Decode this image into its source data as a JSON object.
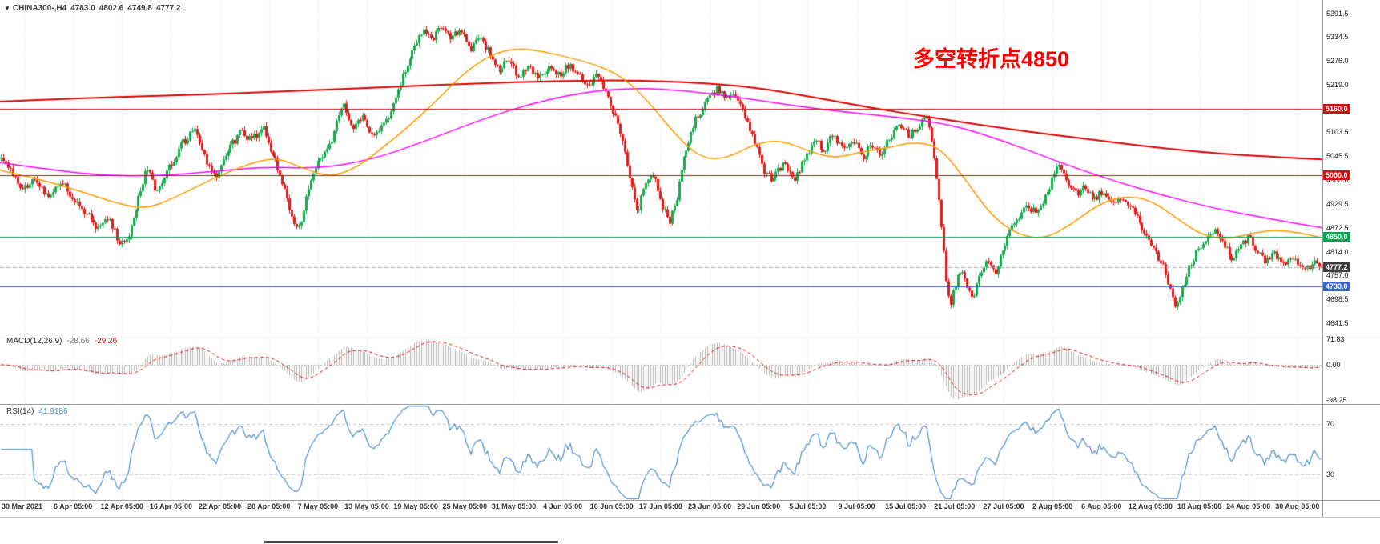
{
  "symbol_info": {
    "icon": "▼",
    "symbol": "CHINA300-,H4",
    "open": "4783.0",
    "high": "4802.6",
    "low": "4749.8",
    "close": "4777.2"
  },
  "annotation": {
    "text": "多空转折点4850",
    "color": "#ff0000"
  },
  "chart_data": {
    "type": "candlestick",
    "symbol": "CHINA300-",
    "timeframe": "H4",
    "last_ohlc": {
      "open": 4783.0,
      "high": 4802.6,
      "low": 4749.8,
      "close": 4777.2
    },
    "price_range": [
      4616,
      5424
    ],
    "bar_count": 560,
    "seed": 20210830,
    "noise_amplitude": 9,
    "bull_color": "#16a94e",
    "bear_color": "#e81717",
    "grid_color": "#e9e9e9",
    "y_ticks": [
      "5391.5",
      "5334.5",
      "5276.0",
      "5219.0",
      "5103.5",
      "5045.5",
      "4988.0",
      "4929.5",
      "4872.5",
      "4814.0",
      "4757.0",
      "4698.5",
      "4641.5"
    ],
    "levels": [
      {
        "value": 5160.0,
        "label": "5160.0",
        "color": "#cc1111"
      },
      {
        "value": 5000.0,
        "label": "5000.0",
        "color": "#cc1111"
      },
      {
        "value": 4850.0,
        "label": "4850.0",
        "color": "#00a651"
      },
      {
        "value": 4730.0,
        "label": "4730.0",
        "color": "#3a62c8"
      }
    ],
    "current_price_line": {
      "value": 4777.2,
      "label": "4777.2",
      "badge_color": "#3d3d3d",
      "line_color": "#b0b0b0"
    },
    "moving_averages": [
      {
        "name": "ma-slow-red",
        "color": "#dd0000",
        "width": 2,
        "anchors": [
          [
            0,
            5178
          ],
          [
            0.06,
            5186
          ],
          [
            0.12,
            5192
          ],
          [
            0.18,
            5198
          ],
          [
            0.24,
            5206
          ],
          [
            0.3,
            5214
          ],
          [
            0.36,
            5222
          ],
          [
            0.42,
            5228
          ],
          [
            0.48,
            5230
          ],
          [
            0.54,
            5222
          ],
          [
            0.58,
            5208
          ],
          [
            0.62,
            5186
          ],
          [
            0.66,
            5162
          ],
          [
            0.7,
            5142
          ],
          [
            0.74,
            5122
          ],
          [
            0.78,
            5104
          ],
          [
            0.82,
            5088
          ],
          [
            0.86,
            5072
          ],
          [
            0.9,
            5058
          ],
          [
            0.94,
            5048
          ],
          [
            1,
            5038
          ]
        ]
      },
      {
        "name": "ma-mid-magenta",
        "color": "#ff00ff",
        "width": 1.5,
        "anchors": [
          [
            0,
            5030
          ],
          [
            0.04,
            5012
          ],
          [
            0.08,
            4998
          ],
          [
            0.12,
            4998
          ],
          [
            0.16,
            5008
          ],
          [
            0.2,
            5020
          ],
          [
            0.24,
            5016
          ],
          [
            0.28,
            5036
          ],
          [
            0.32,
            5080
          ],
          [
            0.36,
            5130
          ],
          [
            0.4,
            5172
          ],
          [
            0.44,
            5200
          ],
          [
            0.48,
            5212
          ],
          [
            0.52,
            5204
          ],
          [
            0.56,
            5188
          ],
          [
            0.6,
            5168
          ],
          [
            0.64,
            5152
          ],
          [
            0.68,
            5140
          ],
          [
            0.72,
            5122
          ],
          [
            0.76,
            5082
          ],
          [
            0.8,
            5032
          ],
          [
            0.84,
            4988
          ],
          [
            0.88,
            4950
          ],
          [
            0.92,
            4918
          ],
          [
            0.96,
            4894
          ],
          [
            1,
            4872
          ]
        ]
      },
      {
        "name": "ma-fast-orange",
        "color": "#ff9900",
        "width": 1.5,
        "anchors": [
          [
            0,
            5012
          ],
          [
            0.03,
            4990
          ],
          [
            0.06,
            4962
          ],
          [
            0.09,
            4930
          ],
          [
            0.11,
            4918
          ],
          [
            0.13,
            4942
          ],
          [
            0.16,
            4990
          ],
          [
            0.19,
            5030
          ],
          [
            0.21,
            5042
          ],
          [
            0.23,
            5015
          ],
          [
            0.25,
            4995
          ],
          [
            0.27,
            5018
          ],
          [
            0.29,
            5068
          ],
          [
            0.31,
            5120
          ],
          [
            0.33,
            5180
          ],
          [
            0.35,
            5245
          ],
          [
            0.37,
            5290
          ],
          [
            0.39,
            5308
          ],
          [
            0.41,
            5300
          ],
          [
            0.43,
            5285
          ],
          [
            0.45,
            5268
          ],
          [
            0.47,
            5240
          ],
          [
            0.49,
            5180
          ],
          [
            0.51,
            5100
          ],
          [
            0.53,
            5040
          ],
          [
            0.55,
            5040
          ],
          [
            0.57,
            5075
          ],
          [
            0.59,
            5085
          ],
          [
            0.61,
            5060
          ],
          [
            0.63,
            5040
          ],
          [
            0.65,
            5055
          ],
          [
            0.67,
            5065
          ],
          [
            0.69,
            5080
          ],
          [
            0.71,
            5070
          ],
          [
            0.73,
            4990
          ],
          [
            0.75,
            4900
          ],
          [
            0.77,
            4855
          ],
          [
            0.79,
            4845
          ],
          [
            0.81,
            4880
          ],
          [
            0.83,
            4928
          ],
          [
            0.85,
            4950
          ],
          [
            0.87,
            4940
          ],
          [
            0.89,
            4895
          ],
          [
            0.91,
            4852
          ],
          [
            0.93,
            4845
          ],
          [
            0.95,
            4862
          ],
          [
            0.97,
            4868
          ],
          [
            1,
            4848
          ]
        ]
      }
    ],
    "price_path_anchors": [
      [
        0,
        5040
      ],
      [
        0.008,
        5018
      ],
      [
        0.016,
        4958
      ],
      [
        0.026,
        4992
      ],
      [
        0.036,
        4945
      ],
      [
        0.046,
        4986
      ],
      [
        0.056,
        4940
      ],
      [
        0.066,
        4905
      ],
      [
        0.074,
        4868
      ],
      [
        0.082,
        4900
      ],
      [
        0.09,
        4832
      ],
      [
        0.097,
        4856
      ],
      [
        0.104,
        4938
      ],
      [
        0.111,
        5018
      ],
      [
        0.118,
        4962
      ],
      [
        0.126,
        5008
      ],
      [
        0.136,
        5070
      ],
      [
        0.148,
        5112
      ],
      [
        0.156,
        5034
      ],
      [
        0.164,
        4992
      ],
      [
        0.172,
        5058
      ],
      [
        0.182,
        5105
      ],
      [
        0.19,
        5082
      ],
      [
        0.198,
        5118
      ],
      [
        0.206,
        5052
      ],
      [
        0.214,
        4978
      ],
      [
        0.221,
        4892
      ],
      [
        0.227,
        4872
      ],
      [
        0.234,
        4986
      ],
      [
        0.242,
        5040
      ],
      [
        0.251,
        5088
      ],
      [
        0.259,
        5176
      ],
      [
        0.266,
        5112
      ],
      [
        0.273,
        5144
      ],
      [
        0.281,
        5092
      ],
      [
        0.289,
        5118
      ],
      [
        0.297,
        5162
      ],
      [
        0.305,
        5246
      ],
      [
        0.313,
        5316
      ],
      [
        0.321,
        5348
      ],
      [
        0.328,
        5330
      ],
      [
        0.334,
        5368
      ],
      [
        0.341,
        5332
      ],
      [
        0.348,
        5354
      ],
      [
        0.355,
        5302
      ],
      [
        0.362,
        5330
      ],
      [
        0.37,
        5298
      ],
      [
        0.377,
        5252
      ],
      [
        0.384,
        5288
      ],
      [
        0.392,
        5238
      ],
      [
        0.399,
        5266
      ],
      [
        0.407,
        5232
      ],
      [
        0.414,
        5262
      ],
      [
        0.422,
        5240
      ],
      [
        0.43,
        5268
      ],
      [
        0.437,
        5244
      ],
      [
        0.444,
        5216
      ],
      [
        0.452,
        5242
      ],
      [
        0.459,
        5198
      ],
      [
        0.466,
        5132
      ],
      [
        0.473,
        5042
      ],
      [
        0.478,
        4958
      ],
      [
        0.482,
        4912
      ],
      [
        0.488,
        4976
      ],
      [
        0.494,
        5002
      ],
      [
        0.5,
        4932
      ],
      [
        0.506,
        4882
      ],
      [
        0.512,
        4952
      ],
      [
        0.518,
        5058
      ],
      [
        0.526,
        5136
      ],
      [
        0.534,
        5178
      ],
      [
        0.542,
        5208
      ],
      [
        0.549,
        5182
      ],
      [
        0.555,
        5202
      ],
      [
        0.562,
        5152
      ],
      [
        0.57,
        5082
      ],
      [
        0.577,
        5012
      ],
      [
        0.584,
        4986
      ],
      [
        0.592,
        5028
      ],
      [
        0.6,
        4988
      ],
      [
        0.608,
        5034
      ],
      [
        0.616,
        5088
      ],
      [
        0.623,
        5058
      ],
      [
        0.629,
        5098
      ],
      [
        0.637,
        5062
      ],
      [
        0.645,
        5086
      ],
      [
        0.652,
        5042
      ],
      [
        0.659,
        5072
      ],
      [
        0.666,
        5046
      ],
      [
        0.673,
        5092
      ],
      [
        0.68,
        5128
      ],
      [
        0.687,
        5092
      ],
      [
        0.694,
        5112
      ],
      [
        0.7,
        5142
      ],
      [
        0.704,
        5098
      ],
      [
        0.708,
        4998
      ],
      [
        0.712,
        4866
      ],
      [
        0.715,
        4756
      ],
      [
        0.718,
        4682
      ],
      [
        0.723,
        4742
      ],
      [
        0.728,
        4772
      ],
      [
        0.732,
        4722
      ],
      [
        0.736,
        4702
      ],
      [
        0.74,
        4758
      ],
      [
        0.746,
        4788
      ],
      [
        0.752,
        4762
      ],
      [
        0.758,
        4818
      ],
      [
        0.764,
        4866
      ],
      [
        0.77,
        4898
      ],
      [
        0.777,
        4928
      ],
      [
        0.784,
        4902
      ],
      [
        0.79,
        4942
      ],
      [
        0.796,
        4992
      ],
      [
        0.801,
        5032
      ],
      [
        0.807,
        4982
      ],
      [
        0.814,
        4952
      ],
      [
        0.82,
        4976
      ],
      [
        0.827,
        4942
      ],
      [
        0.834,
        4962
      ],
      [
        0.841,
        4932
      ],
      [
        0.851,
        4942
      ],
      [
        0.858,
        4906
      ],
      [
        0.865,
        4862
      ],
      [
        0.872,
        4822
      ],
      [
        0.879,
        4782
      ],
      [
        0.884,
        4732
      ],
      [
        0.889,
        4682
      ],
      [
        0.894,
        4722
      ],
      [
        0.9,
        4782
      ],
      [
        0.906,
        4822
      ],
      [
        0.913,
        4852
      ],
      [
        0.919,
        4868
      ],
      [
        0.925,
        4840
      ],
      [
        0.931,
        4792
      ],
      [
        0.937,
        4822
      ],
      [
        0.944,
        4852
      ],
      [
        0.95,
        4820
      ],
      [
        0.957,
        4788
      ],
      [
        0.963,
        4812
      ],
      [
        0.97,
        4782
      ],
      [
        0.978,
        4802
      ],
      [
        0.986,
        4772
      ],
      [
        0.993,
        4788
      ],
      [
        1,
        4777.2
      ]
    ],
    "x_labels": [
      "30 Mar 2021",
      "6 Apr 05:00",
      "12 Apr 05:00",
      "16 Apr 05:00",
      "22 Apr 05:00",
      "28 Apr 05:00",
      "7 May 05:00",
      "13 May 05:00",
      "19 May 05:00",
      "25 May 05:00",
      "31 May 05:00",
      "4 Jun 05:00",
      "10 Jun 05:00",
      "17 Jun 05:00",
      "23 Jun 05:00",
      "29 Jun 05:00",
      "5 Jul 05:00",
      "9 Jul 05:00",
      "15 Jul 05:00",
      "21 Jul 05:00",
      "27 Jul 05:00",
      "2 Aug 05:00",
      "6 Aug 05:00",
      "12 Aug 05:00",
      "18 Aug 05:00",
      "24 Aug 05:00",
      "30 Aug 05:00"
    ],
    "macd": {
      "label": "MACD(12,26,9)",
      "values_text": [
        "-28.66",
        "-29.26"
      ],
      "ticks": [
        "71.83",
        "0.00",
        "-98.25"
      ],
      "render_range": [
        -110,
        85
      ],
      "fast": 12,
      "slow": 26,
      "signal": 9,
      "hist_color": "#b4b4b4",
      "signal_color": "#dd0000"
    },
    "rsi": {
      "label": "RSI(14)",
      "value_text": "41.9186",
      "period": 14,
      "levels": [
        70,
        30
      ],
      "render_range": [
        10,
        85
      ],
      "line_color": "#4f8fd0",
      "level_color": "#c8c8c8"
    }
  }
}
